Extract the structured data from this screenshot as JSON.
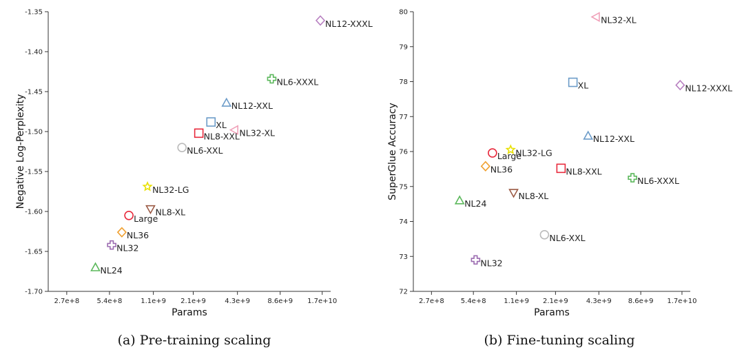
{
  "chart_data": [
    {
      "type": "scatter",
      "title": "",
      "caption": "(a) Pre-training scaling",
      "xlabel": "Params",
      "ylabel": "Negative Log-Perplexity",
      "xscale": "log",
      "xticks": [
        "2.7e+8",
        "5.4e+8",
        "1.1e+9",
        "2.1e+9",
        "4.3e+9",
        "8.6e+9",
        "1.7e+10"
      ],
      "xtick_values": [
        270000000.0,
        540000000.0,
        1100000000.0,
        2100000000.0,
        4300000000.0,
        8600000000.0,
        17000000000.0
      ],
      "xlim": [
        200000000.0,
        19500000000.0
      ],
      "yticks": [
        "-1.35",
        "-1.40",
        "-1.45",
        "-1.50",
        "-1.55",
        "-1.60",
        "-1.65",
        "-1.70"
      ],
      "ytick_values": [
        -1.35,
        -1.4,
        -1.45,
        -1.5,
        -1.55,
        -1.6,
        -1.65,
        -1.7
      ],
      "ylim": [
        -1.7,
        -1.35
      ],
      "grid": false,
      "points": [
        {
          "label": "NL12-XXXL",
          "x": 16500000000.0,
          "y": -1.361,
          "marker": "diamond",
          "color": "#b77fc0"
        },
        {
          "label": "NL6-XXXL",
          "x": 7500000000.0,
          "y": -1.434,
          "marker": "plus",
          "color": "#5cb85c"
        },
        {
          "label": "NL12-XXL",
          "x": 3600000000.0,
          "y": -1.464,
          "marker": "triangle-up",
          "color": "#6b9bc8"
        },
        {
          "label": "XL",
          "x": 2800000000.0,
          "y": -1.488,
          "marker": "square",
          "color": "#6b9bc8"
        },
        {
          "label": "NL32-XL",
          "x": 4100000000.0,
          "y": -1.498,
          "marker": "triangle-left",
          "color": "#f0a0b8"
        },
        {
          "label": "NL8-XXL",
          "x": 2300000000.0,
          "y": -1.502,
          "marker": "square",
          "color": "#e8293c"
        },
        {
          "label": "NL6-XXL",
          "x": 1750000000.0,
          "y": -1.52,
          "marker": "circle",
          "color": "#bbbbbb"
        },
        {
          "label": "NL32-LG",
          "x": 1000000000.0,
          "y": -1.569,
          "marker": "star",
          "color": "#e8e000"
        },
        {
          "label": "NL8-XL",
          "x": 1050000000.0,
          "y": -1.597,
          "marker": "triangle-down",
          "color": "#9b5a44"
        },
        {
          "label": "Large",
          "x": 740000000.0,
          "y": -1.605,
          "marker": "circle",
          "color": "#e8293c"
        },
        {
          "label": "NL36",
          "x": 660000000.0,
          "y": -1.626,
          "marker": "diamond",
          "color": "#f0a030"
        },
        {
          "label": "NL32",
          "x": 560000000.0,
          "y": -1.642,
          "marker": "plus",
          "color": "#9b6bb0"
        },
        {
          "label": "NL24",
          "x": 430000000.0,
          "y": -1.67,
          "marker": "triangle-up",
          "color": "#5cb85c"
        }
      ]
    },
    {
      "type": "scatter",
      "title": "",
      "caption": "(b) Fine-tuning scaling",
      "xlabel": "Params",
      "ylabel": "SuperGlue Accuracy",
      "xscale": "log",
      "xticks": [
        "2.7e+8",
        "5.4e+8",
        "1.1e+9",
        "2.1e+9",
        "4.3e+9",
        "8.6e+9",
        "1.7e+10"
      ],
      "xtick_values": [
        270000000.0,
        540000000.0,
        1100000000.0,
        2100000000.0,
        4300000000.0,
        8600000000.0,
        17000000000.0
      ],
      "xlim": [
        200000000.0,
        19500000000.0
      ],
      "yticks": [
        "80",
        "79",
        "78",
        "77",
        "76",
        "75",
        "74",
        "73",
        "72"
      ],
      "ytick_values": [
        80,
        79,
        78,
        77,
        76,
        75,
        74,
        73,
        72
      ],
      "ylim": [
        72,
        80
      ],
      "grid": false,
      "points": [
        {
          "label": "NL32-XL",
          "x": 4100000000.0,
          "y": 79.85,
          "marker": "triangle-left",
          "color": "#f0a0b8"
        },
        {
          "label": "XL",
          "x": 2800000000.0,
          "y": 77.98,
          "marker": "square",
          "color": "#6b9bc8"
        },
        {
          "label": "NL12-XXXL",
          "x": 16500000000.0,
          "y": 77.9,
          "marker": "diamond",
          "color": "#b77fc0"
        },
        {
          "label": "NL12-XXL",
          "x": 3600000000.0,
          "y": 76.45,
          "marker": "triangle-up",
          "color": "#6b9bc8"
        },
        {
          "label": "NL32-LG",
          "x": 1000000000.0,
          "y": 76.05,
          "marker": "star",
          "color": "#e8e000"
        },
        {
          "label": "Large",
          "x": 740000000.0,
          "y": 75.96,
          "marker": "circle",
          "color": "#e8293c"
        },
        {
          "label": "NL36",
          "x": 660000000.0,
          "y": 75.58,
          "marker": "diamond",
          "color": "#f0a030"
        },
        {
          "label": "NL8-XXL",
          "x": 2300000000.0,
          "y": 75.52,
          "marker": "square",
          "color": "#e8293c"
        },
        {
          "label": "NL6-XXXL",
          "x": 7500000000.0,
          "y": 75.25,
          "marker": "plus",
          "color": "#5cb85c"
        },
        {
          "label": "NL8-XL",
          "x": 1050000000.0,
          "y": 74.82,
          "marker": "triangle-down",
          "color": "#9b5a44"
        },
        {
          "label": "NL24",
          "x": 430000000.0,
          "y": 74.6,
          "marker": "triangle-up",
          "color": "#5cb85c"
        },
        {
          "label": "NL6-XXL",
          "x": 1750000000.0,
          "y": 73.62,
          "marker": "circle",
          "color": "#bbbbbb"
        },
        {
          "label": "NL32",
          "x": 560000000.0,
          "y": 72.9,
          "marker": "plus",
          "color": "#9b6bb0"
        }
      ]
    }
  ]
}
